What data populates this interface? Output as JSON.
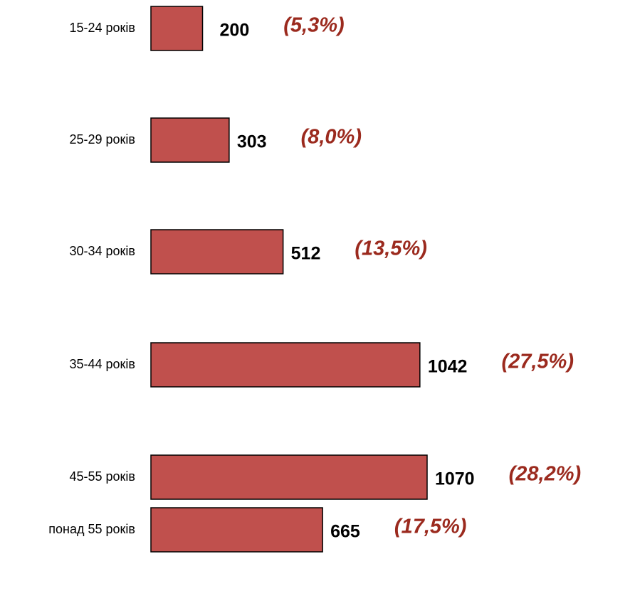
{
  "chart_data": {
    "type": "hbar",
    "categories": [
      "15-24 років",
      "25-29 років",
      "30-34 років",
      "35-44 років",
      "45-55 років",
      "понад 55 років"
    ],
    "values": [
      200,
      303,
      512,
      1042,
      1070,
      665
    ],
    "annotations": [
      "(5,3%)",
      "(8,0%)",
      "(13,5%)",
      "(27,5%)",
      "(28,2%)",
      "(17,5%)"
    ],
    "color": "#c0504d"
  }
}
